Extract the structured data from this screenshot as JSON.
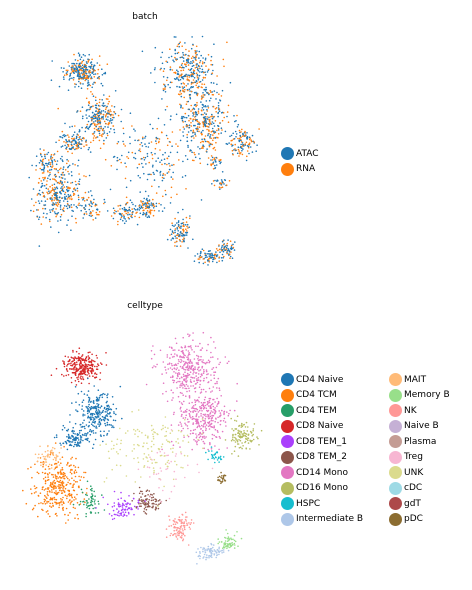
{
  "chart_data": [
    {
      "type": "scatter",
      "title": "batch",
      "xlabel": "",
      "ylabel": "",
      "grid": false,
      "legend_position": "right",
      "series": [
        {
          "name": "ATAC",
          "color": "#1f77b4"
        },
        {
          "name": "RNA",
          "color": "#ff7f0e"
        }
      ]
    },
    {
      "type": "scatter",
      "title": "celltype",
      "xlabel": "",
      "ylabel": "",
      "grid": false,
      "legend_position": "right",
      "series": [
        {
          "name": "CD4 Naive",
          "color": "#1f77b4"
        },
        {
          "name": "CD4 TCM",
          "color": "#ff7f0e"
        },
        {
          "name": "CD4 TEM",
          "color": "#279e68"
        },
        {
          "name": "CD8 Naive",
          "color": "#d62728"
        },
        {
          "name": "CD8 TEM_1",
          "color": "#aa40fc"
        },
        {
          "name": "CD8 TEM_2",
          "color": "#8c564b"
        },
        {
          "name": "CD14 Mono",
          "color": "#e377c2"
        },
        {
          "name": "CD16 Mono",
          "color": "#b5bd61"
        },
        {
          "name": "HSPC",
          "color": "#17becf"
        },
        {
          "name": "Intermediate B",
          "color": "#aec7e8"
        },
        {
          "name": "MAIT",
          "color": "#ffbb78"
        },
        {
          "name": "Memory B",
          "color": "#98df8a"
        },
        {
          "name": "NK",
          "color": "#ff9896"
        },
        {
          "name": "Naive B",
          "color": "#c5b0d5"
        },
        {
          "name": "Plasma",
          "color": "#c49c94"
        },
        {
          "name": "Treg",
          "color": "#f7b6d2"
        },
        {
          "name": "UNK",
          "color": "#dbdb8d"
        },
        {
          "name": "cDC",
          "color": "#9edae5"
        },
        {
          "name": "gdT",
          "color": "#ad494a"
        },
        {
          "name": "pDC",
          "color": "#8c6d31"
        }
      ]
    }
  ]
}
